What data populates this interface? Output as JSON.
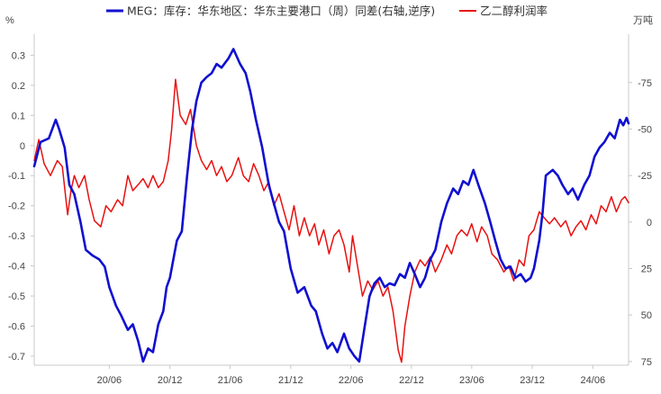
{
  "chart_data": {
    "type": "line",
    "title": "",
    "left_axis": {
      "unit": "%",
      "ylim": [
        -0.73,
        0.37
      ],
      "ticks": [
        0.3,
        0.2,
        0.1,
        0,
        -0.1,
        -0.2,
        -0.3,
        -0.4,
        -0.5,
        -0.6,
        -0.7
      ],
      "tick_labels": [
        "0.3",
        "0.2",
        "0.1",
        "0",
        "-0.1",
        "-0.2",
        "-0.3",
        "-0.4",
        "-0.5",
        "-0.6",
        "-0.7"
      ]
    },
    "right_axis": {
      "unit": "万吨",
      "reversed": true,
      "ylim": [
        -101,
        77
      ],
      "ticks": [
        -75,
        -50,
        -25,
        0,
        25,
        50,
        75
      ],
      "tick_labels": [
        "-75",
        "-50",
        "-25",
        "0",
        "25",
        "50",
        "75"
      ]
    },
    "x_axis": {
      "xlim": [
        "2019-11-01",
        "2024-10-01"
      ],
      "ticks": [
        "2020-06-15",
        "2020-12-15",
        "2021-06-15",
        "2021-12-15",
        "2022-06-15",
        "2022-12-15",
        "2023-06-15",
        "2023-12-15",
        "2024-06-15"
      ],
      "tick_labels": [
        "20/06",
        "20/12",
        "21/06",
        "21/12",
        "22/06",
        "22/12",
        "23/06",
        "23/12",
        "24/06"
      ]
    },
    "grid": false,
    "legend": "top-center",
    "series": [
      {
        "name": "MEG：库存：华东地区：华东主要港口（周）同差(右轴,逆序)",
        "axis": "right",
        "color": "#1010d0",
        "points": [
          [
            "2019-11-01",
            -30
          ],
          [
            "2019-11-20",
            -43
          ],
          [
            "2019-12-15",
            -45
          ],
          [
            "2020-01-05",
            -55
          ],
          [
            "2020-01-15",
            -50
          ],
          [
            "2020-02-01",
            -40
          ],
          [
            "2020-02-15",
            -20
          ],
          [
            "2020-03-01",
            -15
          ],
          [
            "2020-03-20",
            0
          ],
          [
            "2020-04-05",
            15
          ],
          [
            "2020-04-25",
            18
          ],
          [
            "2020-05-15",
            20
          ],
          [
            "2020-06-01",
            24
          ],
          [
            "2020-06-15",
            35
          ],
          [
            "2020-07-05",
            45
          ],
          [
            "2020-07-20",
            50
          ],
          [
            "2020-08-10",
            58
          ],
          [
            "2020-08-25",
            55
          ],
          [
            "2020-09-10",
            64
          ],
          [
            "2020-09-25",
            75
          ],
          [
            "2020-10-10",
            68
          ],
          [
            "2020-10-25",
            70
          ],
          [
            "2020-11-10",
            55
          ],
          [
            "2020-11-25",
            48
          ],
          [
            "2020-12-05",
            35
          ],
          [
            "2020-12-15",
            30
          ],
          [
            "2021-01-05",
            10
          ],
          [
            "2021-01-20",
            5
          ],
          [
            "2021-02-05",
            -25
          ],
          [
            "2021-02-20",
            -50
          ],
          [
            "2021-03-05",
            -65
          ],
          [
            "2021-03-20",
            -75
          ],
          [
            "2021-04-05",
            -78
          ],
          [
            "2021-04-20",
            -80
          ],
          [
            "2021-05-05",
            -85
          ],
          [
            "2021-05-20",
            -83
          ],
          [
            "2021-06-10",
            -88
          ],
          [
            "2021-06-25",
            -93
          ],
          [
            "2021-07-15",
            -85
          ],
          [
            "2021-08-01",
            -80
          ],
          [
            "2021-08-15",
            -70
          ],
          [
            "2021-09-01",
            -55
          ],
          [
            "2021-09-20",
            -40
          ],
          [
            "2021-10-10",
            -20
          ],
          [
            "2021-10-25",
            -10
          ],
          [
            "2021-11-10",
            0
          ],
          [
            "2021-11-25",
            5
          ],
          [
            "2021-12-15",
            25
          ],
          [
            "2022-01-05",
            38
          ],
          [
            "2022-01-25",
            35
          ],
          [
            "2022-02-15",
            45
          ],
          [
            "2022-03-01",
            48
          ],
          [
            "2022-03-20",
            60
          ],
          [
            "2022-04-05",
            68
          ],
          [
            "2022-04-20",
            65
          ],
          [
            "2022-05-05",
            70
          ],
          [
            "2022-05-25",
            60
          ],
          [
            "2022-06-10",
            68
          ],
          [
            "2022-06-25",
            72
          ],
          [
            "2022-07-10",
            75
          ],
          [
            "2022-07-25",
            58
          ],
          [
            "2022-08-10",
            40
          ],
          [
            "2022-08-25",
            33
          ],
          [
            "2022-09-10",
            30
          ],
          [
            "2022-09-25",
            35
          ],
          [
            "2022-10-10",
            33
          ],
          [
            "2022-10-25",
            34
          ],
          [
            "2022-11-10",
            28
          ],
          [
            "2022-11-25",
            30
          ],
          [
            "2022-12-10",
            22
          ],
          [
            "2022-12-25",
            28
          ],
          [
            "2023-01-10",
            35
          ],
          [
            "2023-01-25",
            30
          ],
          [
            "2023-02-10",
            20
          ],
          [
            "2023-02-25",
            15
          ],
          [
            "2023-03-15",
            0
          ],
          [
            "2023-04-01",
            -10
          ],
          [
            "2023-04-20",
            -18
          ],
          [
            "2023-05-05",
            -15
          ],
          [
            "2023-05-20",
            -22
          ],
          [
            "2023-06-05",
            -20
          ],
          [
            "2023-06-20",
            -28
          ],
          [
            "2023-07-05",
            -20
          ],
          [
            "2023-07-25",
            -10
          ],
          [
            "2023-08-10",
            0
          ],
          [
            "2023-08-25",
            10
          ],
          [
            "2023-09-10",
            20
          ],
          [
            "2023-09-25",
            25
          ],
          [
            "2023-10-10",
            24
          ],
          [
            "2023-10-25",
            30
          ],
          [
            "2023-11-10",
            28
          ],
          [
            "2023-11-25",
            32
          ],
          [
            "2023-12-10",
            30
          ],
          [
            "2023-12-20",
            25
          ],
          [
            "2024-01-05",
            10
          ],
          [
            "2024-01-15",
            -5
          ],
          [
            "2024-01-25",
            -25
          ],
          [
            "2024-02-15",
            -28
          ],
          [
            "2024-03-01",
            -25
          ],
          [
            "2024-03-15",
            -20
          ],
          [
            "2024-04-01",
            -15
          ],
          [
            "2024-04-15",
            -18
          ],
          [
            "2024-05-01",
            -12
          ],
          [
            "2024-05-20",
            -20
          ],
          [
            "2024-06-05",
            -25
          ],
          [
            "2024-06-20",
            -35
          ],
          [
            "2024-07-05",
            -40
          ],
          [
            "2024-07-20",
            -43
          ],
          [
            "2024-08-05",
            -48
          ],
          [
            "2024-08-20",
            -45
          ],
          [
            "2024-09-05",
            -55
          ],
          [
            "2024-09-15",
            -52
          ],
          [
            "2024-09-25",
            -56
          ],
          [
            "2024-10-01",
            -53
          ]
        ]
      },
      {
        "name": "乙二醇利润率",
        "axis": "left",
        "color": "#e81010",
        "points": [
          [
            "2019-11-01",
            -0.05
          ],
          [
            "2019-11-15",
            0.02
          ],
          [
            "2019-12-01",
            -0.06
          ],
          [
            "2019-12-20",
            -0.1
          ],
          [
            "2020-01-10",
            -0.05
          ],
          [
            "2020-01-25",
            -0.07
          ],
          [
            "2020-02-10",
            -0.23
          ],
          [
            "2020-02-20",
            -0.15
          ],
          [
            "2020-03-01",
            -0.1
          ],
          [
            "2020-03-15",
            -0.14
          ],
          [
            "2020-04-01",
            -0.1
          ],
          [
            "2020-04-15",
            -0.18
          ],
          [
            "2020-05-01",
            -0.25
          ],
          [
            "2020-05-20",
            -0.27
          ],
          [
            "2020-06-05",
            -0.2
          ],
          [
            "2020-06-20",
            -0.22
          ],
          [
            "2020-07-10",
            -0.18
          ],
          [
            "2020-07-25",
            -0.2
          ],
          [
            "2020-08-10",
            -0.1
          ],
          [
            "2020-08-25",
            -0.15
          ],
          [
            "2020-09-10",
            -0.13
          ],
          [
            "2020-09-25",
            -0.11
          ],
          [
            "2020-10-10",
            -0.14
          ],
          [
            "2020-10-25",
            -0.1
          ],
          [
            "2020-11-10",
            -0.14
          ],
          [
            "2020-11-25",
            -0.12
          ],
          [
            "2020-12-10",
            -0.05
          ],
          [
            "2020-12-20",
            0.05
          ],
          [
            "2021-01-01",
            0.22
          ],
          [
            "2021-01-15",
            0.1
          ],
          [
            "2021-02-01",
            0.07
          ],
          [
            "2021-02-15",
            0.12
          ],
          [
            "2021-03-05",
            0.0
          ],
          [
            "2021-03-20",
            -0.05
          ],
          [
            "2021-04-05",
            -0.08
          ],
          [
            "2021-04-20",
            -0.05
          ],
          [
            "2021-05-05",
            -0.1
          ],
          [
            "2021-05-20",
            -0.07
          ],
          [
            "2021-06-05",
            -0.12
          ],
          [
            "2021-06-20",
            -0.1
          ],
          [
            "2021-07-10",
            -0.04
          ],
          [
            "2021-07-25",
            -0.1
          ],
          [
            "2021-08-10",
            -0.12
          ],
          [
            "2021-08-25",
            -0.06
          ],
          [
            "2021-09-10",
            -0.1
          ],
          [
            "2021-09-25",
            -0.15
          ],
          [
            "2021-10-10",
            -0.12
          ],
          [
            "2021-10-25",
            -0.2
          ],
          [
            "2021-11-10",
            -0.16
          ],
          [
            "2021-11-25",
            -0.22
          ],
          [
            "2021-12-10",
            -0.28
          ],
          [
            "2021-12-25",
            -0.2
          ],
          [
            "2022-01-10",
            -0.3
          ],
          [
            "2022-01-25",
            -0.24
          ],
          [
            "2022-02-10",
            -0.3
          ],
          [
            "2022-02-25",
            -0.26
          ],
          [
            "2022-03-10",
            -0.33
          ],
          [
            "2022-03-25",
            -0.28
          ],
          [
            "2022-04-10",
            -0.36
          ],
          [
            "2022-04-25",
            -0.3
          ],
          [
            "2022-05-10",
            -0.28
          ],
          [
            "2022-05-25",
            -0.33
          ],
          [
            "2022-06-10",
            -0.42
          ],
          [
            "2022-06-20",
            -0.3
          ],
          [
            "2022-07-05",
            -0.4
          ],
          [
            "2022-07-20",
            -0.5
          ],
          [
            "2022-08-05",
            -0.45
          ],
          [
            "2022-08-20",
            -0.48
          ],
          [
            "2022-09-05",
            -0.45
          ],
          [
            "2022-09-20",
            -0.5
          ],
          [
            "2022-10-05",
            -0.47
          ],
          [
            "2022-10-20",
            -0.55
          ],
          [
            "2022-11-05",
            -0.68
          ],
          [
            "2022-11-15",
            -0.72
          ],
          [
            "2022-11-25",
            -0.6
          ],
          [
            "2022-12-10",
            -0.5
          ],
          [
            "2022-12-25",
            -0.42
          ],
          [
            "2023-01-10",
            -0.38
          ],
          [
            "2023-01-25",
            -0.4
          ],
          [
            "2023-02-10",
            -0.37
          ],
          [
            "2023-02-25",
            -0.42
          ],
          [
            "2023-03-15",
            -0.38
          ],
          [
            "2023-04-01",
            -0.33
          ],
          [
            "2023-04-15",
            -0.36
          ],
          [
            "2023-05-01",
            -0.3
          ],
          [
            "2023-05-15",
            -0.28
          ],
          [
            "2023-06-01",
            -0.3
          ],
          [
            "2023-06-15",
            -0.26
          ],
          [
            "2023-07-01",
            -0.32
          ],
          [
            "2023-07-15",
            -0.27
          ],
          [
            "2023-08-01",
            -0.3
          ],
          [
            "2023-08-15",
            -0.36
          ],
          [
            "2023-09-01",
            -0.38
          ],
          [
            "2023-09-20",
            -0.42
          ],
          [
            "2023-10-05",
            -0.4
          ],
          [
            "2023-10-20",
            -0.45
          ],
          [
            "2023-11-05",
            -0.38
          ],
          [
            "2023-11-20",
            -0.4
          ],
          [
            "2023-12-05",
            -0.3
          ],
          [
            "2023-12-20",
            -0.28
          ],
          [
            "2024-01-05",
            -0.22
          ],
          [
            "2024-01-20",
            -0.24
          ],
          [
            "2024-02-05",
            -0.26
          ],
          [
            "2024-02-20",
            -0.24
          ],
          [
            "2024-03-10",
            -0.27
          ],
          [
            "2024-03-25",
            -0.25
          ],
          [
            "2024-04-10",
            -0.3
          ],
          [
            "2024-04-25",
            -0.27
          ],
          [
            "2024-05-10",
            -0.25
          ],
          [
            "2024-05-25",
            -0.28
          ],
          [
            "2024-06-10",
            -0.23
          ],
          [
            "2024-06-25",
            -0.26
          ],
          [
            "2024-07-10",
            -0.2
          ],
          [
            "2024-07-25",
            -0.22
          ],
          [
            "2024-08-10",
            -0.17
          ],
          [
            "2024-08-25",
            -0.22
          ],
          [
            "2024-09-10",
            -0.18
          ],
          [
            "2024-09-20",
            -0.17
          ],
          [
            "2024-10-01",
            -0.19
          ]
        ]
      }
    ]
  }
}
